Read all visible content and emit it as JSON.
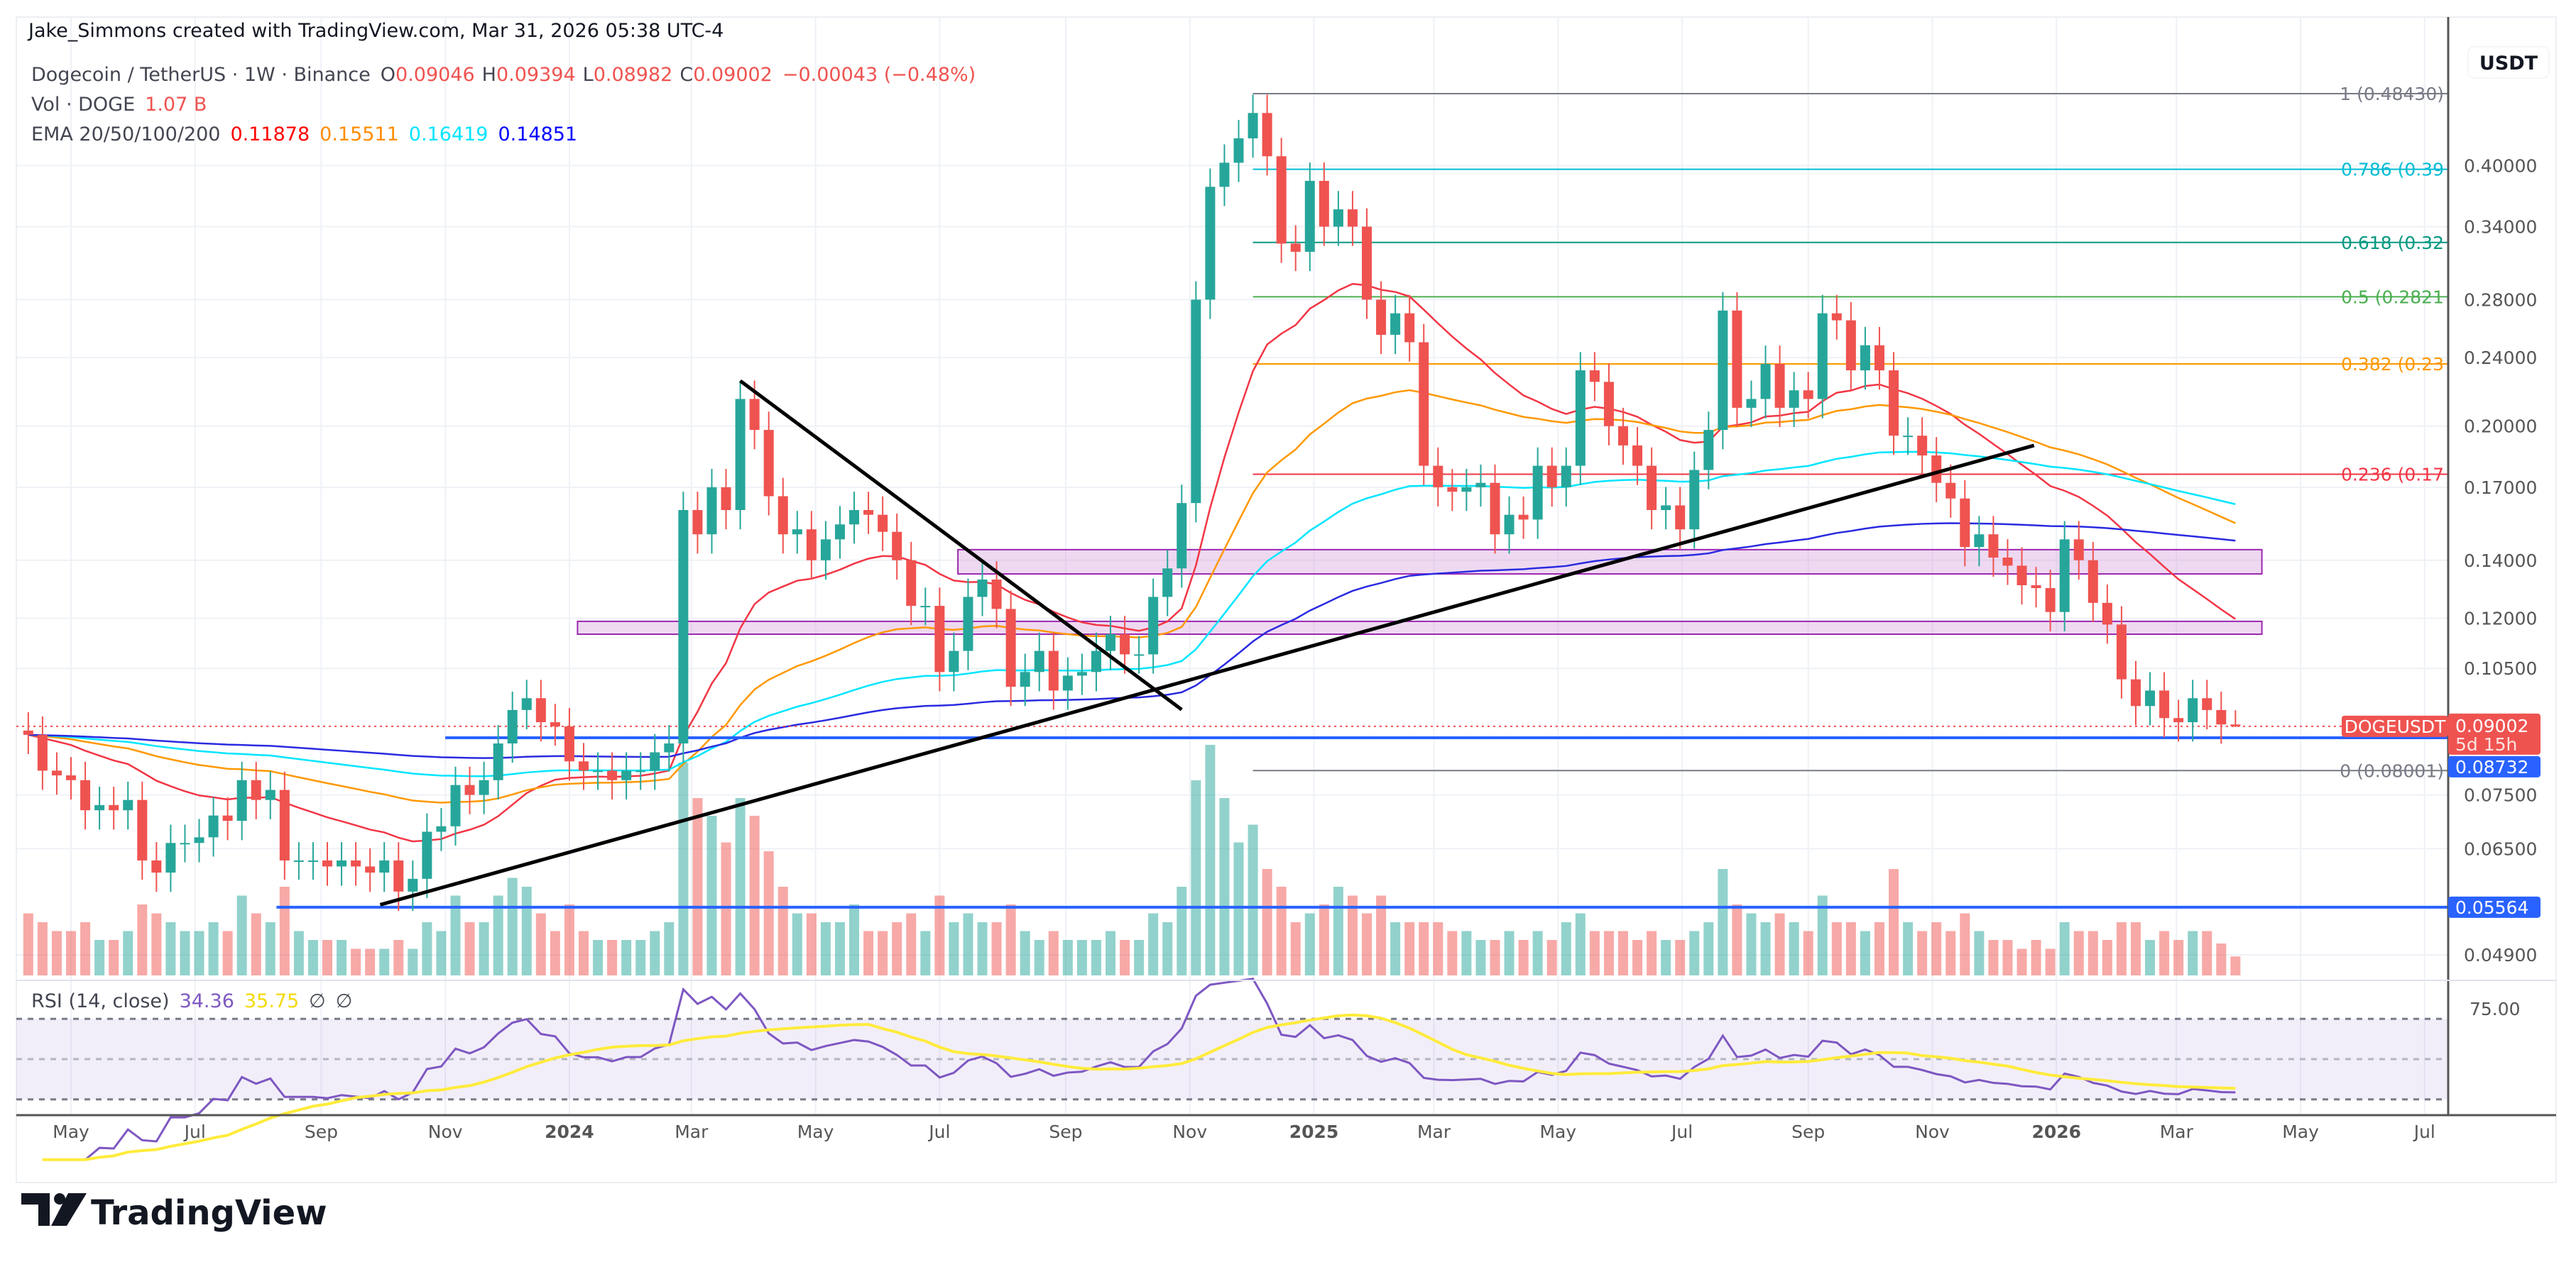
{
  "header": {
    "attribution": "Jake_Simmons created with TradingView.com, Mar 31, 2026 05:38 UTC-4",
    "symbol": "Dogecoin / TetherUS · 1W · Binance",
    "o_label": "O",
    "o": "0.09046",
    "h_label": "H",
    "h": "0.09394",
    "l_label": "L",
    "l": "0.08982",
    "c_label": "C",
    "c": "0.09002",
    "change": "−0.00043 (−0.48%)",
    "vol_label": "Vol · DOGE",
    "vol": "1.07 B",
    "ema_label": "EMA 20/50/100/200",
    "ema20": "0.11878",
    "ema50": "0.15511",
    "ema100": "0.16419",
    "ema200": "0.14851",
    "rsi_label": "RSI (14, close)",
    "rsi": "34.36",
    "rsi_ma": "35.75",
    "rsi_na1": "∅",
    "rsi_na2": "∅"
  },
  "axis": {
    "currency": "USDT",
    "price_ticks": [
      "0.40000",
      "0.34000",
      "0.28000",
      "0.24000",
      "0.20000",
      "0.17000",
      "0.14000",
      "0.12000",
      "0.10500",
      "0.07500",
      "0.06500",
      "0.04900"
    ],
    "rsi_tick": "75.00",
    "last_price_label": "0.09002",
    "countdown": "5d 15h",
    "symbol_tag": "DOGEUSDT",
    "level1_label": "0.08732",
    "level2_label": "0.05564",
    "time_ticks": [
      {
        "label": "May",
        "date": "2023-05-01",
        "bold": false
      },
      {
        "label": "Jul",
        "date": "2023-07-01",
        "bold": false
      },
      {
        "label": "Sep",
        "date": "2023-09-01",
        "bold": false
      },
      {
        "label": "Nov",
        "date": "2023-11-01",
        "bold": false
      },
      {
        "label": "2024",
        "date": "2024-01-01",
        "bold": true
      },
      {
        "label": "Mar",
        "date": "2024-03-01",
        "bold": false
      },
      {
        "label": "May",
        "date": "2024-05-01",
        "bold": false
      },
      {
        "label": "Jul",
        "date": "2024-07-01",
        "bold": false
      },
      {
        "label": "Sep",
        "date": "2024-09-01",
        "bold": false
      },
      {
        "label": "Nov",
        "date": "2024-11-01",
        "bold": false
      },
      {
        "label": "2025",
        "date": "2025-01-01",
        "bold": true
      },
      {
        "label": "Mar",
        "date": "2025-03-01",
        "bold": false
      },
      {
        "label": "May",
        "date": "2025-05-01",
        "bold": false
      },
      {
        "label": "Jul",
        "date": "2025-07-01",
        "bold": false
      },
      {
        "label": "Sep",
        "date": "2025-09-01",
        "bold": false
      },
      {
        "label": "Nov",
        "date": "2025-11-01",
        "bold": false
      },
      {
        "label": "2026",
        "date": "2026-01-01",
        "bold": true
      },
      {
        "label": "Mar",
        "date": "2026-03-01",
        "bold": false
      },
      {
        "label": "May",
        "date": "2026-05-01",
        "bold": false
      },
      {
        "label": "Jul",
        "date": "2026-07-01",
        "bold": false
      }
    ]
  },
  "footer": {
    "logo_text": "TradingView"
  },
  "colors": {
    "up": "#26a69a",
    "down": "#ef5350",
    "ema20": "#f23645",
    "ema50": "#ff9800",
    "ema100": "#00e5ff",
    "ema200": "#2a2ae0",
    "rsi": "#7e57c2",
    "rsi_ma": "#ffeb3b",
    "level": "#2962ff",
    "zone": "#ce93d8"
  },
  "chart_data": {
    "type": "candlestick",
    "scale": "log",
    "ylim": [
      0.049,
      0.5
    ],
    "grid": true,
    "candles_fields": [
      "week",
      "close",
      "volume_B"
    ],
    "first_open": 0.089,
    "last_candle": {
      "open": 0.09046,
      "high": 0.09394,
      "low": 0.08982,
      "close": 0.09002
    },
    "candles": [
      [
        "2023-04-10",
        0.088,
        3.5
      ],
      [
        "2023-04-17",
        0.08,
        3
      ],
      [
        "2023-04-24",
        0.079,
        2.5
      ],
      [
        "2023-05-01",
        0.078,
        2.5
      ],
      [
        "2023-05-08",
        0.072,
        3
      ],
      [
        "2023-05-15",
        0.073,
        2
      ],
      [
        "2023-05-22",
        0.072,
        2
      ],
      [
        "2023-05-29",
        0.074,
        2.5
      ],
      [
        "2023-06-05",
        0.063,
        4
      ],
      [
        "2023-06-12",
        0.061,
        3.5
      ],
      [
        "2023-06-19",
        0.066,
        3
      ],
      [
        "2023-06-26",
        0.066,
        2.5
      ],
      [
        "2023-07-03",
        0.067,
        2.5
      ],
      [
        "2023-07-10",
        0.071,
        3
      ],
      [
        "2023-07-17",
        0.07,
        2.5
      ],
      [
        "2023-07-24",
        0.078,
        4.5
      ],
      [
        "2023-07-31",
        0.074,
        3.5
      ],
      [
        "2023-08-07",
        0.076,
        3
      ],
      [
        "2023-08-14",
        0.063,
        5
      ],
      [
        "2023-08-21",
        0.063,
        2.5
      ],
      [
        "2023-08-28",
        0.063,
        2
      ],
      [
        "2023-09-04",
        0.062,
        2
      ],
      [
        "2023-09-11",
        0.063,
        2
      ],
      [
        "2023-09-18",
        0.062,
        1.5
      ],
      [
        "2023-09-25",
        0.061,
        1.5
      ],
      [
        "2023-10-02",
        0.063,
        1.5
      ],
      [
        "2023-10-09",
        0.058,
        2
      ],
      [
        "2023-10-16",
        0.06,
        1.5
      ],
      [
        "2023-10-23",
        0.068,
        3
      ],
      [
        "2023-10-30",
        0.069,
        2.5
      ],
      [
        "2023-11-06",
        0.077,
        4.5
      ],
      [
        "2023-11-13",
        0.075,
        3
      ],
      [
        "2023-11-20",
        0.078,
        3
      ],
      [
        "2023-11-27",
        0.086,
        4.5
      ],
      [
        "2023-12-04",
        0.094,
        5.5
      ],
      [
        "2023-12-11",
        0.097,
        5
      ],
      [
        "2023-12-18",
        0.091,
        3.5
      ],
      [
        "2023-12-25",
        0.09,
        2.5
      ],
      [
        "2024-01-01",
        0.082,
        4
      ],
      [
        "2024-01-08",
        0.08,
        2.5
      ],
      [
        "2024-01-15",
        0.08,
        2
      ],
      [
        "2024-01-22",
        0.078,
        2
      ],
      [
        "2024-01-29",
        0.08,
        2
      ],
      [
        "2024-02-05",
        0.08,
        2
      ],
      [
        "2024-02-12",
        0.084,
        2.5
      ],
      [
        "2024-02-19",
        0.086,
        3
      ],
      [
        "2024-02-26",
        0.16,
        12
      ],
      [
        "2024-03-04",
        0.15,
        10
      ],
      [
        "2024-03-11",
        0.17,
        9
      ],
      [
        "2024-03-18",
        0.16,
        7.5
      ],
      [
        "2024-03-25",
        0.215,
        10
      ],
      [
        "2024-04-01",
        0.198,
        9
      ],
      [
        "2024-04-08",
        0.166,
        7
      ],
      [
        "2024-04-15",
        0.15,
        5
      ],
      [
        "2024-04-22",
        0.152,
        3.5
      ],
      [
        "2024-04-29",
        0.14,
        3.5
      ],
      [
        "2024-05-06",
        0.148,
        3
      ],
      [
        "2024-05-13",
        0.154,
        3
      ],
      [
        "2024-05-20",
        0.16,
        4
      ],
      [
        "2024-05-27",
        0.158,
        2.5
      ],
      [
        "2024-06-03",
        0.151,
        2.5
      ],
      [
        "2024-06-10",
        0.14,
        3
      ],
      [
        "2024-06-17",
        0.124,
        3.5
      ],
      [
        "2024-06-24",
        0.124,
        2.5
      ],
      [
        "2024-07-01",
        0.104,
        4.5
      ],
      [
        "2024-07-08",
        0.11,
        3
      ],
      [
        "2024-07-15",
        0.127,
        3.5
      ],
      [
        "2024-07-22",
        0.133,
        3
      ],
      [
        "2024-07-29",
        0.123,
        3
      ],
      [
        "2024-08-05",
        0.1,
        4
      ],
      [
        "2024-08-12",
        0.104,
        2.5
      ],
      [
        "2024-08-19",
        0.11,
        2
      ],
      [
        "2024-08-26",
        0.099,
        2.5
      ],
      [
        "2024-09-02",
        0.103,
        2
      ],
      [
        "2024-09-09",
        0.104,
        2
      ],
      [
        "2024-09-16",
        0.11,
        2
      ],
      [
        "2024-09-23",
        0.115,
        2.5
      ],
      [
        "2024-09-30",
        0.109,
        2
      ],
      [
        "2024-10-07",
        0.109,
        2
      ],
      [
        "2024-10-14",
        0.127,
        3.5
      ],
      [
        "2024-10-21",
        0.137,
        3
      ],
      [
        "2024-10-28",
        0.163,
        5
      ],
      [
        "2024-11-04",
        0.28,
        11
      ],
      [
        "2024-11-11",
        0.378,
        13
      ],
      [
        "2024-11-18",
        0.403,
        10
      ],
      [
        "2024-11-25",
        0.43,
        7.5
      ],
      [
        "2024-12-02",
        0.46,
        8.5
      ],
      [
        "2024-12-09",
        0.41,
        6
      ],
      [
        "2024-12-16",
        0.325,
        5
      ],
      [
        "2024-12-23",
        0.318,
        3
      ],
      [
        "2024-12-30",
        0.384,
        3.5
      ],
      [
        "2025-01-06",
        0.34,
        4
      ],
      [
        "2025-01-13",
        0.356,
        5
      ],
      [
        "2025-01-20",
        0.34,
        4.5
      ],
      [
        "2025-01-27",
        0.28,
        3.5
      ],
      [
        "2025-02-03",
        0.255,
        4.5
      ],
      [
        "2025-02-10",
        0.27,
        3
      ],
      [
        "2025-02-17",
        0.25,
        3
      ],
      [
        "2025-02-24",
        0.18,
        3
      ],
      [
        "2025-03-03",
        0.17,
        3
      ],
      [
        "2025-03-10",
        0.168,
        2.5
      ],
      [
        "2025-03-17",
        0.17,
        2.5
      ],
      [
        "2025-03-24",
        0.172,
        2
      ],
      [
        "2025-03-31",
        0.15,
        2
      ],
      [
        "2025-04-07",
        0.158,
        2.5
      ],
      [
        "2025-04-14",
        0.156,
        2
      ],
      [
        "2025-04-21",
        0.18,
        2.5
      ],
      [
        "2025-04-28",
        0.17,
        2
      ],
      [
        "2025-05-05",
        0.18,
        3
      ],
      [
        "2025-05-12",
        0.232,
        3.5
      ],
      [
        "2025-05-19",
        0.225,
        2.5
      ],
      [
        "2025-05-26",
        0.2,
        2.5
      ],
      [
        "2025-06-02",
        0.19,
        2.5
      ],
      [
        "2025-06-09",
        0.18,
        2
      ],
      [
        "2025-06-16",
        0.16,
        2.5
      ],
      [
        "2025-06-23",
        0.162,
        2
      ],
      [
        "2025-06-30",
        0.152,
        2
      ],
      [
        "2025-07-07",
        0.178,
        2.5
      ],
      [
        "2025-07-14",
        0.198,
        3
      ],
      [
        "2025-07-21",
        0.272,
        6
      ],
      [
        "2025-07-28",
        0.21,
        4
      ],
      [
        "2025-08-04",
        0.215,
        3.5
      ],
      [
        "2025-08-11",
        0.236,
        3
      ],
      [
        "2025-08-18",
        0.21,
        3.5
      ],
      [
        "2025-08-25",
        0.22,
        3
      ],
      [
        "2025-09-01",
        0.215,
        2.5
      ],
      [
        "2025-09-08",
        0.27,
        4.5
      ],
      [
        "2025-09-15",
        0.265,
        3
      ],
      [
        "2025-09-22",
        0.232,
        3
      ],
      [
        "2025-09-29",
        0.248,
        2.5
      ],
      [
        "2025-10-06",
        0.232,
        3
      ],
      [
        "2025-10-13",
        0.195,
        6
      ],
      [
        "2025-10-20",
        0.195,
        3
      ],
      [
        "2025-10-27",
        0.185,
        2.5
      ],
      [
        "2025-11-03",
        0.172,
        3
      ],
      [
        "2025-11-10",
        0.165,
        2.5
      ],
      [
        "2025-11-17",
        0.145,
        3.5
      ],
      [
        "2025-11-24",
        0.15,
        2.5
      ],
      [
        "2025-12-01",
        0.141,
        2
      ],
      [
        "2025-12-08",
        0.138,
        2
      ],
      [
        "2025-12-15",
        0.131,
        1.5
      ],
      [
        "2025-12-22",
        0.13,
        2
      ],
      [
        "2025-12-29",
        0.122,
        1.5
      ],
      [
        "2026-01-05",
        0.148,
        3
      ],
      [
        "2026-01-12",
        0.14,
        2.5
      ],
      [
        "2026-01-19",
        0.125,
        2.5
      ],
      [
        "2026-01-26",
        0.118,
        2
      ],
      [
        "2026-02-02",
        0.102,
        3
      ],
      [
        "2026-02-09",
        0.095,
        3
      ],
      [
        "2026-02-16",
        0.099,
        2
      ],
      [
        "2026-02-23",
        0.092,
        2.5
      ],
      [
        "2026-03-02",
        0.091,
        2
      ],
      [
        "2026-03-09",
        0.097,
        2.5
      ],
      [
        "2026-03-16",
        0.094,
        2.5
      ],
      [
        "2026-03-23",
        0.09046,
        1.8
      ],
      [
        "2026-03-30",
        0.09002,
        1.07
      ]
    ],
    "fib_retracement": {
      "start": "2024-12-02",
      "levels": [
        {
          "ratio": "1",
          "label": "1 (0.48430)",
          "price": 0.4843,
          "color": "#787b86"
        },
        {
          "ratio": "0.786",
          "label": "0.786 (0.39",
          "price": 0.396,
          "color": "#00bcd4"
        },
        {
          "ratio": "0.618",
          "label": "0.618 (0.32",
          "price": 0.326,
          "color": "#089981"
        },
        {
          "ratio": "0.5",
          "label": "0.5 (0.2821",
          "price": 0.2821,
          "color": "#4caf50"
        },
        {
          "ratio": "0.382",
          "label": "0.382 (0.23",
          "price": 0.236,
          "color": "#ff9800"
        },
        {
          "ratio": "0.236",
          "label": "0.236 (0.17",
          "price": 0.176,
          "color": "#f23645"
        },
        {
          "ratio": "0",
          "label": "0 (0.08001)",
          "price": 0.08001,
          "color": "#787b86"
        }
      ]
    },
    "trendlines": [
      {
        "from": [
          "2024-03-25",
          0.2256
        ],
        "to": [
          "2024-10-28",
          0.0941
        ]
      },
      {
        "from": [
          "2023-09-30",
          0.056
        ],
        "to": [
          "2025-12-21",
          0.19
        ]
      }
    ],
    "horizontal_levels": [
      {
        "price": 0.08732,
        "from": "2023-11-01"
      },
      {
        "price": 0.05564,
        "from": "2023-08-10"
      }
    ],
    "zones": [
      {
        "low": 0.135,
        "high": 0.144,
        "from": "2024-07-10"
      },
      {
        "low": 0.115,
        "high": 0.119,
        "from": "2024-01-05"
      }
    ],
    "zone_end": "2026-04-12",
    "rsi_levels": [
      70,
      50,
      30
    ]
  }
}
